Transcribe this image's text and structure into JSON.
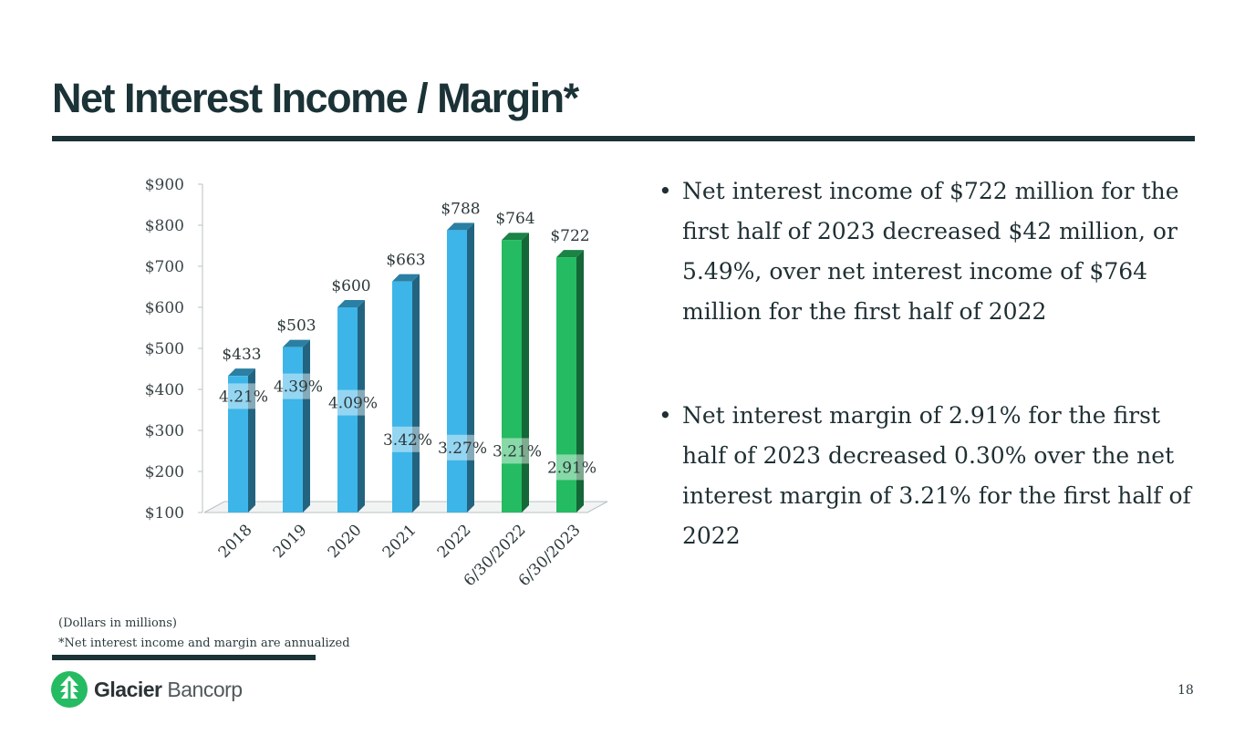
{
  "title": "Net Interest Income / Margin*",
  "chart_data": {
    "type": "bar",
    "categories": [
      "2018",
      "2019",
      "2020",
      "2021",
      "2022",
      "6/30/2022",
      "6/30/2023"
    ],
    "values": [
      433,
      503,
      600,
      663,
      788,
      764,
      722
    ],
    "value_labels": [
      "$433",
      "$503",
      "$600",
      "$663",
      "$788",
      "$764",
      "$722"
    ],
    "margins": [
      "4.21%",
      "4.39%",
      "4.09%",
      "3.42%",
      "3.27%",
      "3.21%",
      "2.91%"
    ],
    "margin_values": [
      4.21,
      4.39,
      4.09,
      3.42,
      3.27,
      3.21,
      2.91
    ],
    "ylim": [
      100,
      900
    ],
    "yticks": [
      "$100",
      "$200",
      "$300",
      "$400",
      "$500",
      "$600",
      "$700",
      "$800",
      "$900"
    ],
    "bar_colors": [
      "#3db5e8",
      "#3db5e8",
      "#3db5e8",
      "#3db5e8",
      "#3db5e8",
      "#25bb62",
      "#25bb62"
    ],
    "xlabel": "",
    "ylabel": "",
    "grid": false
  },
  "bullets": [
    "Net interest income of $722 million for the first half of 2023 decreased $42 million, or 5.49%, over net interest income of $764 million for the first half of 2022",
    "Net interest margin of 2.91% for the first half of 2023 decreased 0.30% over the net interest margin of 3.21% for the first half of 2022"
  ],
  "footnotes": {
    "units": "(Dollars in millions)",
    "note": "*Net interest income and margin are annualized"
  },
  "logo": {
    "bold": "Glacier",
    "light": "Bancorp"
  },
  "page_number": "18",
  "colors": {
    "dark": "#1b3236",
    "blue": "#3db5e8",
    "green": "#25bb62"
  }
}
